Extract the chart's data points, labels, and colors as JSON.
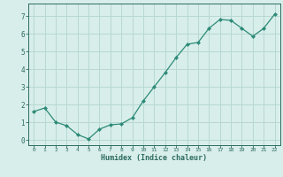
{
  "x": [
    0,
    1,
    2,
    3,
    4,
    5,
    6,
    7,
    8,
    9,
    10,
    11,
    12,
    13,
    14,
    15,
    16,
    17,
    18,
    19,
    20,
    21,
    22
  ],
  "y": [
    1.6,
    1.8,
    1.0,
    0.8,
    0.3,
    0.05,
    0.6,
    0.85,
    0.9,
    1.25,
    2.2,
    3.0,
    3.8,
    4.65,
    5.4,
    5.5,
    6.3,
    6.8,
    6.75,
    6.3,
    5.85,
    6.3,
    7.1
  ],
  "xlabel": "Humidex (Indice chaleur)",
  "xlim": [
    -0.5,
    22.5
  ],
  "ylim": [
    -0.3,
    7.7
  ],
  "yticks": [
    0,
    1,
    2,
    3,
    4,
    5,
    6,
    7
  ],
  "xticks": [
    0,
    1,
    2,
    3,
    4,
    5,
    6,
    7,
    8,
    9,
    10,
    11,
    12,
    13,
    14,
    15,
    16,
    17,
    18,
    19,
    20,
    21,
    22
  ],
  "line_color": "#2d8b78",
  "marker_color": "#2d8b78",
  "bg_color": "#d8eeea",
  "grid_color": "#b8d8d2",
  "axis_label_color": "#2d6b60",
  "tick_label_color": "#2d6b60"
}
